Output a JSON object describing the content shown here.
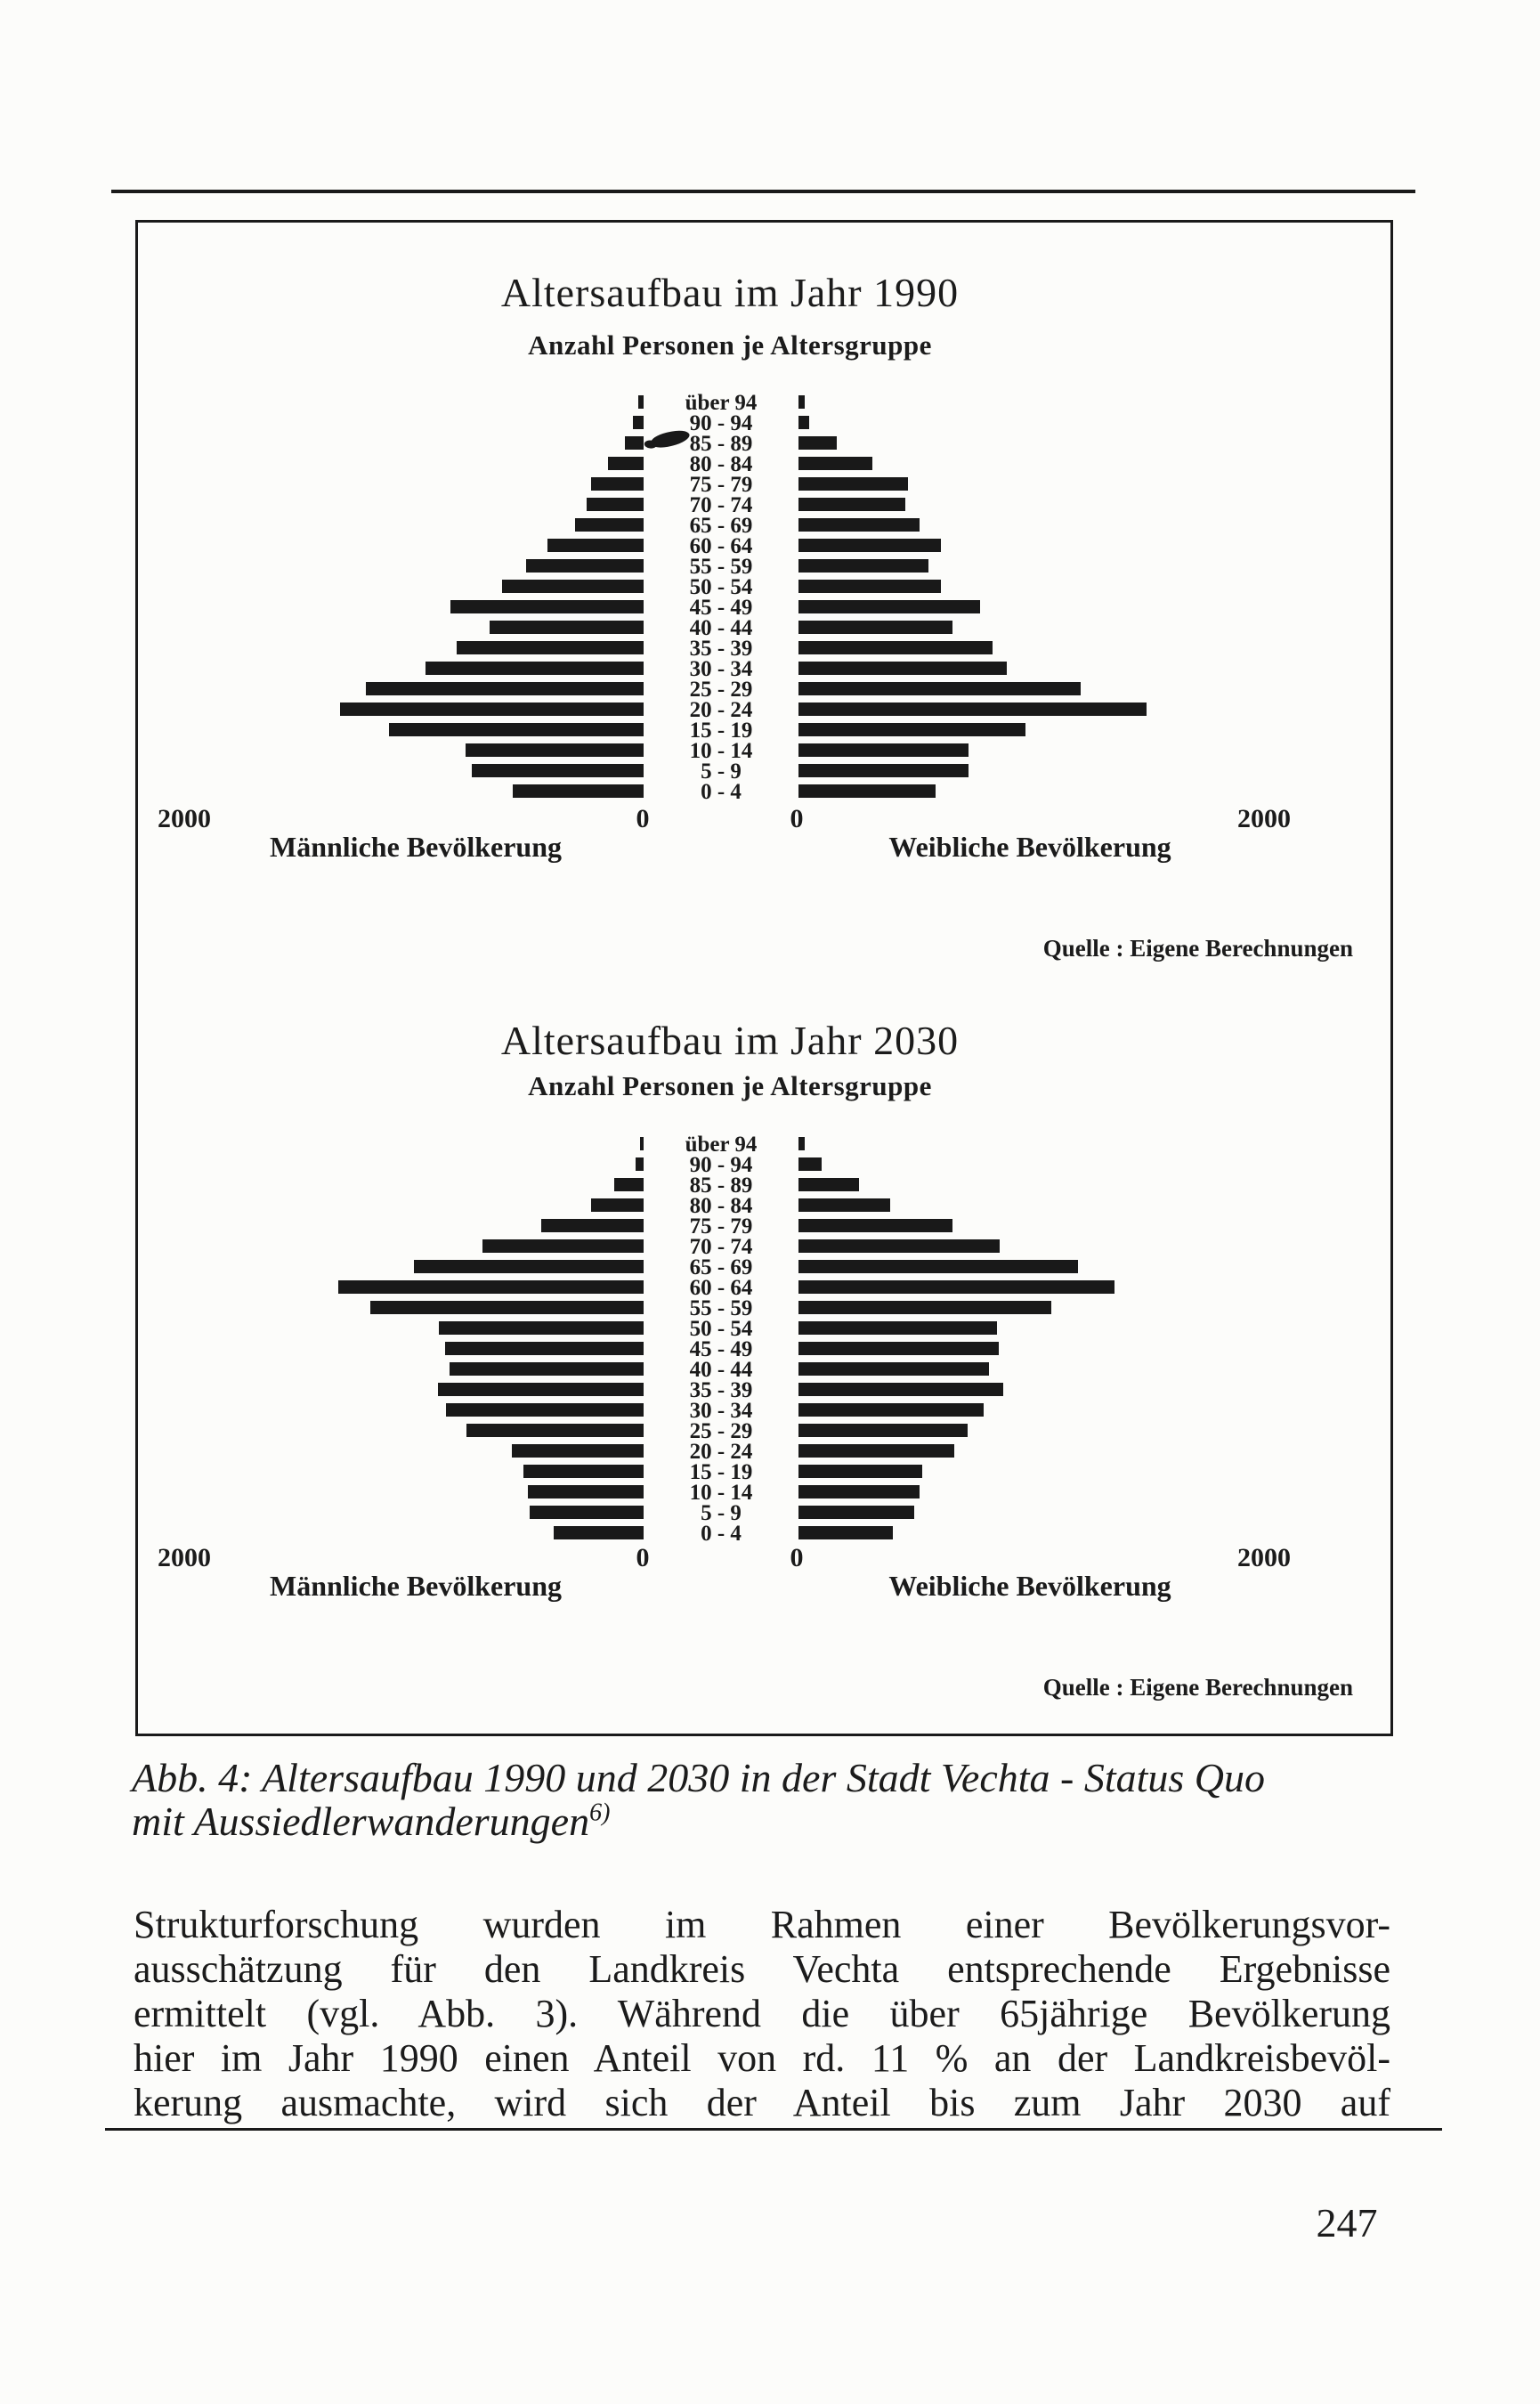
{
  "page": {
    "number": "247"
  },
  "caption": {
    "line1": "Abb. 4: Altersaufbau 1990 und 2030 in der Stadt Vechta - Status Quo",
    "line2": "mit Aussiedlerwanderungen",
    "footnote_mark": "6)"
  },
  "paragraph": {
    "lines": [
      "Strukturforschung wurden im Rahmen einer Bevölkerungsvor-",
      "ausschätzung für den Landkreis Vechta entsprechende Ergebnisse",
      "ermittelt (vgl. Abb. 3). Während die über 65jährige Bevölkerung",
      "hier im Jahr 1990 einen Anteil von rd. 11 % an der Landkreisbevöl-",
      "kerung ausmachte, wird sich der Anteil bis zum Jahr 2030 auf"
    ]
  },
  "chart_data": [
    {
      "type": "bar",
      "variant": "population-pyramid",
      "title": "Altersaufbau im Jahr 1990",
      "subtitle": "Anzahl Personen je Altersgruppe",
      "source": "Quelle : Eigene Berechnungen",
      "xlabel": "Anzahl Personen",
      "xlim": [
        0,
        2000
      ],
      "axis": {
        "left_outer": "2000",
        "left_inner": "0",
        "right_inner": "0",
        "right_outer": "2000"
      },
      "categories": [
        "über 94",
        "90 - 94",
        "85 - 89",
        "80 - 84",
        "75 - 79",
        "70 - 74",
        "65 - 69",
        "60 - 64",
        "55 - 59",
        "50 - 54",
        "45 - 49",
        "40 - 44",
        "35 - 39",
        "30 - 34",
        "25 - 29",
        "20 - 24",
        "15 - 19",
        "10 - 14",
        "5 - 9",
        "0 - 4"
      ],
      "series": [
        {
          "name": "Männliche Bevölkerung",
          "values": [
            25,
            45,
            80,
            155,
            230,
            250,
            300,
            420,
            510,
            615,
            840,
            670,
            815,
            950,
            1210,
            1320,
            1110,
            775,
            750,
            570
          ]
        },
        {
          "name": "Weibliche Bevölkerung",
          "values": [
            25,
            45,
            165,
            320,
            475,
            465,
            525,
            620,
            565,
            620,
            790,
            670,
            845,
            905,
            1230,
            1515,
            990,
            740,
            740,
            595
          ]
        }
      ]
    },
    {
      "type": "bar",
      "variant": "population-pyramid",
      "title": "Altersaufbau im Jahr 2030",
      "subtitle": "Anzahl Personen je Altersgruppe",
      "source": "Quelle : Eigene Berechnungen",
      "xlabel": "Anzahl Personen",
      "xlim": [
        0,
        2000
      ],
      "axis": {
        "left_outer": "2000",
        "left_inner": "0",
        "right_inner": "0",
        "right_outer": "2000"
      },
      "categories": [
        "über 94",
        "90 - 94",
        "85 - 89",
        "80 - 84",
        "75 - 79",
        "70 - 74",
        "65 - 69",
        "60 - 64",
        "55 - 59",
        "50 - 54",
        "45 - 49",
        "40 - 44",
        "35 - 39",
        "30 - 34",
        "25 - 29",
        "20 - 24",
        "15 - 19",
        "10 - 14",
        "5 - 9",
        "0 - 4"
      ],
      "series": [
        {
          "name": "Männliche Bevölkerung",
          "values": [
            15,
            35,
            130,
            230,
            445,
            700,
            1000,
            1330,
            1190,
            890,
            865,
            845,
            895,
            860,
            770,
            575,
            525,
            505,
            495,
            390
          ]
        },
        {
          "name": "Weibliche Bevölkerung",
          "values": [
            25,
            100,
            265,
            400,
            670,
            875,
            1215,
            1375,
            1100,
            865,
            870,
            830,
            890,
            805,
            735,
            680,
            540,
            525,
            505,
            410
          ]
        }
      ]
    }
  ]
}
